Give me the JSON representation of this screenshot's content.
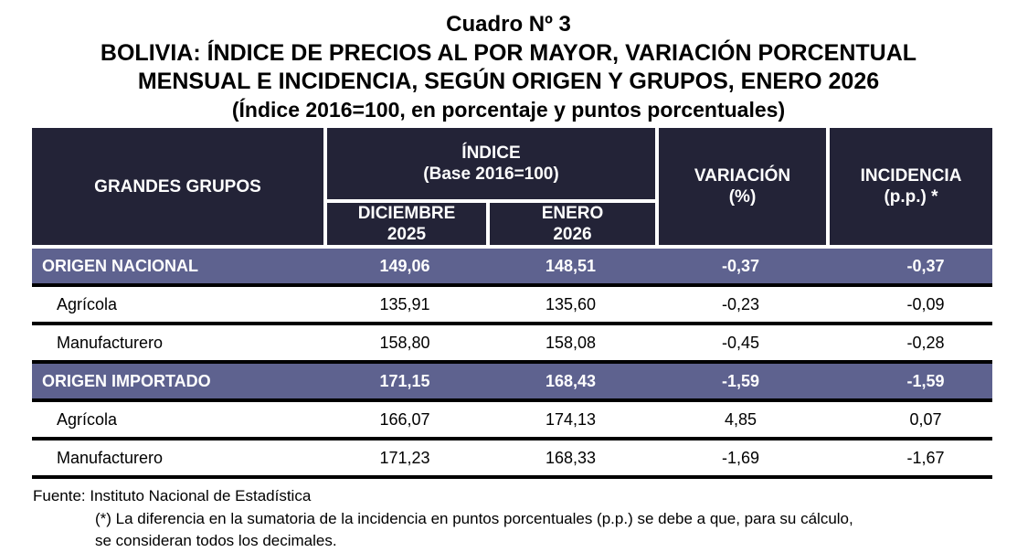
{
  "header": {
    "table_number": "Cuadro Nº 3",
    "title_line1": "BOLIVIA: ÍNDICE DE PRECIOS AL POR MAYOR, VARIACIÓN PORCENTUAL",
    "title_line2": "MENSUAL E INCIDENCIA, SEGÚN ORIGEN Y GRUPOS, ENERO 2026",
    "subtitle": "(Índice 2016=100, en porcentaje y puntos porcentuales)"
  },
  "table": {
    "columns": {
      "groups": "GRANDES GRUPOS",
      "indice_line1": "ÍNDICE",
      "indice_line2": "(Base 2016=100)",
      "diciembre_line1": "DICIEMBRE",
      "diciembre_line2": "2025",
      "enero_line1": "ENERO",
      "enero_line2": "2026",
      "variacion_line1": "VARIACIÓN",
      "variacion_line2": "(%)",
      "incidencia_line1": "INCIDENCIA",
      "incidencia_line2": "(p.p.) *"
    },
    "rows": [
      {
        "name": "ORIGEN NACIONAL",
        "type": "group",
        "diciembre_2025": "149,06",
        "enero_2026": "148,51",
        "variacion": "-0,37",
        "incidencia": "-0,37"
      },
      {
        "name": "Agrícola",
        "type": "sub",
        "diciembre_2025": "135,91",
        "enero_2026": "135,60",
        "variacion": "-0,23",
        "incidencia": "-0,09"
      },
      {
        "name": "Manufacturero",
        "type": "sub",
        "diciembre_2025": "158,80",
        "enero_2026": "158,08",
        "variacion": "-0,45",
        "incidencia": "-0,28"
      },
      {
        "name": "ORIGEN IMPORTADO",
        "type": "group",
        "diciembre_2025": "171,15",
        "enero_2026": "168,43",
        "variacion": "-1,59",
        "incidencia": "-1,59"
      },
      {
        "name": "Agrícola",
        "type": "sub",
        "diciembre_2025": "166,07",
        "enero_2026": "174,13",
        "variacion": "4,85",
        "incidencia": "0,07"
      },
      {
        "name": "Manufacturero",
        "type": "sub",
        "diciembre_2025": "171,23",
        "enero_2026": "168,33",
        "variacion": "-1,69",
        "incidencia": "-1,67"
      }
    ]
  },
  "footer": {
    "source": "Fuente: Instituto Nacional de Estadística",
    "note_line1": "(*) La diferencia en la sumatoria de la incidencia en puntos porcentuales (p.p.) se debe a que, para su cálculo,",
    "note_line2": "se consideran todos los decimales."
  },
  "colors": {
    "header_bg": "#232337",
    "group_row_bg": "#5e628f",
    "row_divider": "#000000",
    "header_text": "#ffffff"
  }
}
